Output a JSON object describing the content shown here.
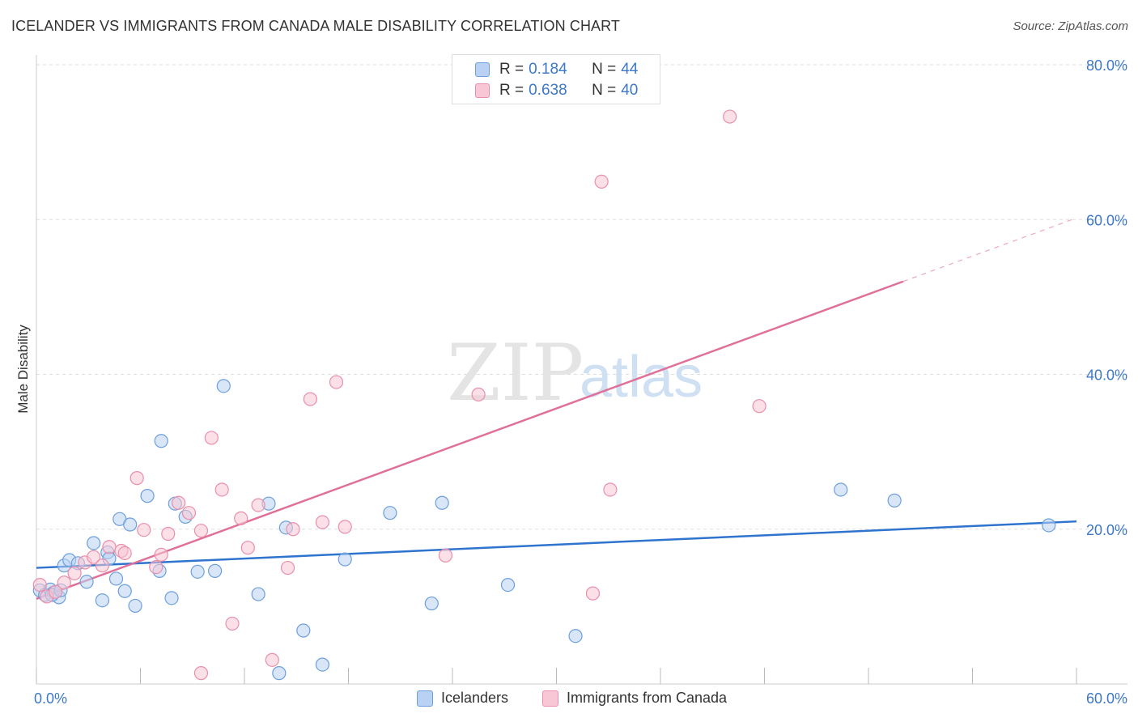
{
  "title": "ICELANDER VS IMMIGRANTS FROM CANADA MALE DISABILITY CORRELATION CHART",
  "source": "Source: ZipAtlas.com",
  "watermark": {
    "zip": "ZIP",
    "atlas": "atlas"
  },
  "legend": {
    "rows": [
      {
        "r_label": "R =",
        "r_value": "0.184",
        "n_label": "N =",
        "n_value": "44"
      },
      {
        "r_label": "R =",
        "r_value": "0.638",
        "n_label": "N =",
        "n_value": "40"
      }
    ]
  },
  "bottom_legend": {
    "series1": "Icelanders",
    "series2": "Immigrants from Canada"
  },
  "colors": {
    "blue_fill": "#b9d2f3",
    "blue_stroke": "#6c9fdc",
    "blue_line": "#2e74cf",
    "pink_fill": "#f8c7d6",
    "pink_stroke": "#e98fab",
    "pink_line": "#e07099",
    "tick_text": "#3d78c9",
    "grid": "#dddddd"
  },
  "chart_data": {
    "type": "scatter",
    "title": "ICELANDER VS IMMIGRANTS FROM CANADA MALE DISABILITY CORRELATION CHART",
    "xlabel": "",
    "ylabel": "Male Disability",
    "xlim": [
      0,
      60
    ],
    "ylim": [
      0,
      80
    ],
    "x_tick_labels": [
      "0.0%",
      "60.0%"
    ],
    "y_ticks": [
      20,
      40,
      60,
      80
    ],
    "y_tick_labels": [
      "20.0%",
      "40.0%",
      "60.0%",
      "80.0%"
    ],
    "grid": true,
    "legend_position": "top-center",
    "series": [
      {
        "name": "Icelanders",
        "r": 0.184,
        "n": 44,
        "trend": {
          "x1": 0,
          "y1": 15.0,
          "x2": 60,
          "y2": 21.0
        },
        "points": [
          [
            0.2,
            12.1
          ],
          [
            0.5,
            11.5
          ],
          [
            0.8,
            12.2
          ],
          [
            1.0,
            11.8
          ],
          [
            1.3,
            11.2
          ],
          [
            1.6,
            15.3
          ],
          [
            1.9,
            16.0
          ],
          [
            2.4,
            15.6
          ],
          [
            2.9,
            13.2
          ],
          [
            3.3,
            18.2
          ],
          [
            3.8,
            10.8
          ],
          [
            4.1,
            17.0
          ],
          [
            4.2,
            16.2
          ],
          [
            4.6,
            13.6
          ],
          [
            4.8,
            21.3
          ],
          [
            5.1,
            12.0
          ],
          [
            5.4,
            20.6
          ],
          [
            5.7,
            10.1
          ],
          [
            6.4,
            24.3
          ],
          [
            7.1,
            14.6
          ],
          [
            7.2,
            31.4
          ],
          [
            7.8,
            11.1
          ],
          [
            8.0,
            23.3
          ],
          [
            8.6,
            21.6
          ],
          [
            9.3,
            14.5
          ],
          [
            10.3,
            14.6
          ],
          [
            10.8,
            38.5
          ],
          [
            12.8,
            11.6
          ],
          [
            13.4,
            23.3
          ],
          [
            14.4,
            20.2
          ],
          [
            14.0,
            1.4
          ],
          [
            15.4,
            6.9
          ],
          [
            16.5,
            2.5
          ],
          [
            17.8,
            16.1
          ],
          [
            20.4,
            22.1
          ],
          [
            22.8,
            10.4
          ],
          [
            23.4,
            23.4
          ],
          [
            27.2,
            12.8
          ],
          [
            31.1,
            6.2
          ],
          [
            46.4,
            25.1
          ],
          [
            49.5,
            23.7
          ],
          [
            58.4,
            20.5
          ],
          [
            0.9,
            11.5
          ],
          [
            1.4,
            12.1
          ]
        ]
      },
      {
        "name": "Immigrants from Canada",
        "r": 0.638,
        "n": 40,
        "trend": {
          "x1": 0,
          "y1": 11.0,
          "x2": 50,
          "y2": 52.0
        },
        "trend_dashed": {
          "x1": 50,
          "y1": 52.0,
          "x2": 60,
          "y2": 60.2
        },
        "points": [
          [
            0.2,
            12.8
          ],
          [
            0.6,
            11.3
          ],
          [
            1.1,
            11.9
          ],
          [
            1.6,
            13.1
          ],
          [
            2.2,
            14.3
          ],
          [
            2.8,
            15.7
          ],
          [
            3.3,
            16.4
          ],
          [
            3.8,
            15.3
          ],
          [
            4.2,
            17.7
          ],
          [
            4.9,
            17.2
          ],
          [
            5.1,
            16.9
          ],
          [
            5.8,
            26.6
          ],
          [
            6.2,
            19.9
          ],
          [
            6.9,
            15.1
          ],
          [
            7.2,
            16.7
          ],
          [
            7.6,
            19.4
          ],
          [
            8.2,
            23.4
          ],
          [
            8.8,
            22.1
          ],
          [
            9.5,
            1.4
          ],
          [
            9.5,
            19.8
          ],
          [
            10.1,
            31.8
          ],
          [
            10.7,
            25.1
          ],
          [
            11.3,
            7.8
          ],
          [
            11.8,
            21.4
          ],
          [
            12.2,
            17.6
          ],
          [
            12.8,
            23.1
          ],
          [
            13.6,
            3.1
          ],
          [
            14.5,
            15.0
          ],
          [
            14.8,
            20.0
          ],
          [
            15.8,
            36.8
          ],
          [
            16.5,
            20.9
          ],
          [
            17.3,
            39.0
          ],
          [
            17.8,
            20.3
          ],
          [
            25.5,
            37.4
          ],
          [
            23.6,
            16.6
          ],
          [
            32.1,
            11.7
          ],
          [
            32.6,
            64.9
          ],
          [
            33.1,
            25.1
          ],
          [
            40.0,
            73.3
          ],
          [
            41.7,
            35.9
          ]
        ]
      }
    ]
  }
}
